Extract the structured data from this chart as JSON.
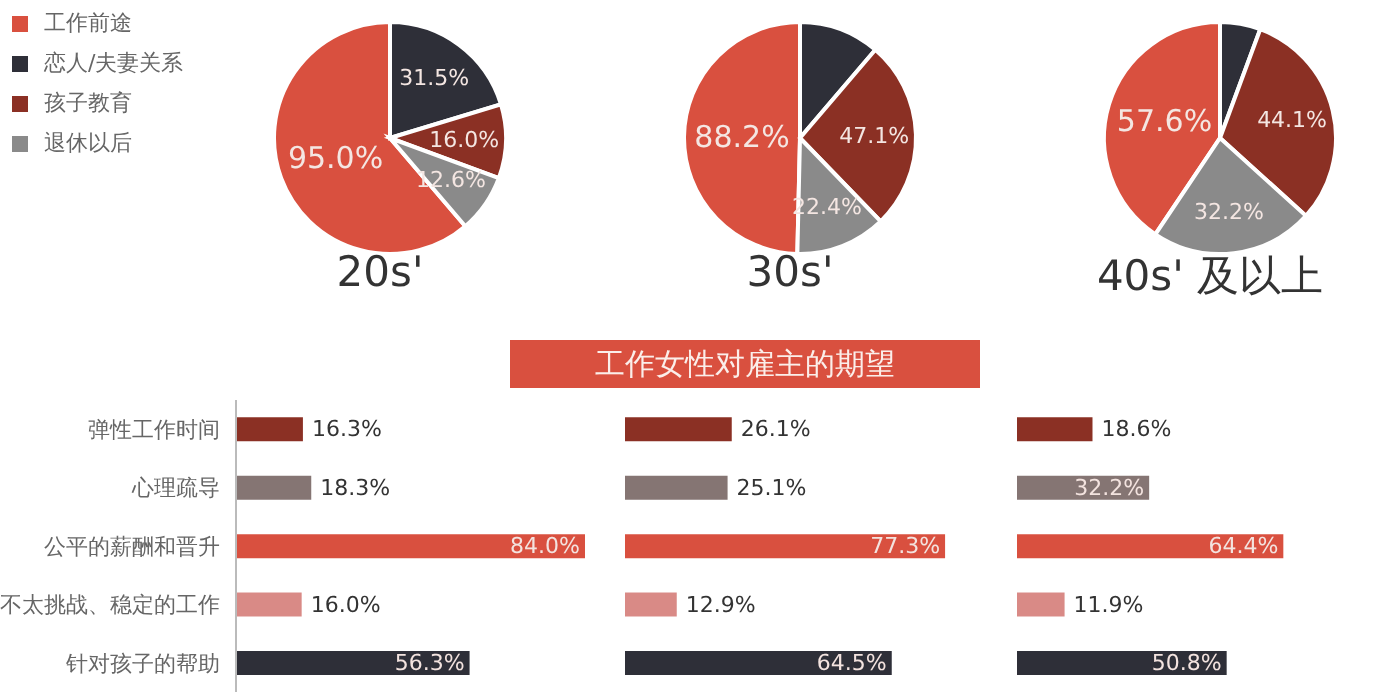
{
  "chart_data": [
    {
      "type": "pie",
      "title": "20s'",
      "categories": [
        "工作前途",
        "恋人/夫妻关系",
        "孩子教育",
        "退休以后"
      ],
      "values": [
        95.0,
        31.5,
        16.0,
        12.6
      ],
      "value_labels": [
        "95.0%",
        "31.5%",
        "16.0%",
        "12.6%"
      ],
      "colors": [
        "#d9503f",
        "#2e2f38",
        "#8b3024",
        "#8a8a8a"
      ],
      "legend": "left"
    },
    {
      "type": "pie",
      "title": "30s'",
      "categories": [
        null,
        null,
        null,
        null
      ],
      "values": [
        88.2,
        20,
        47.1,
        22.4
      ],
      "value_labels": [
        "88.2%",
        null,
        "47.1%",
        "22.4%"
      ],
      "colors": [
        "#d9503f",
        "#2e2f38",
        "#8b3024",
        "#8a8a8a"
      ]
    },
    {
      "type": "pie",
      "title": "40s' 及以上",
      "categories": [
        null,
        null,
        null,
        null
      ],
      "values": [
        57.6,
        8,
        44.1,
        32.2
      ],
      "value_labels": [
        "57.6%",
        null,
        "44.1%",
        "32.2%"
      ],
      "colors": [
        "#d9503f",
        "#2e2f38",
        "#8b3024",
        "#8a8a8a"
      ]
    },
    {
      "type": "bar",
      "orientation": "horizontal",
      "categories": [
        "弹性工作时间",
        "心理疏导",
        "公平的薪酬和晋升",
        "不太挑战、稳定的工作",
        "针对孩子的帮助"
      ],
      "values": [
        16.3,
        18.3,
        84.0,
        16.0,
        56.3
      ],
      "value_labels": [
        "16.3%",
        "18.3%",
        "84.0%",
        "16.0%",
        "56.3%"
      ],
      "colors": [
        "#8b3024",
        "#857573",
        "#d9503f",
        "#d98a86",
        "#2e2f38"
      ],
      "tick_labels": "y"
    },
    {
      "type": "bar",
      "orientation": "horizontal",
      "title": "工作女性对雇主的期望",
      "categories": [
        null,
        null,
        null,
        null,
        null
      ],
      "values": [
        26.1,
        25.1,
        77.3,
        12.9,
        64.5
      ],
      "value_labels": [
        "26.1%",
        "25.1%",
        "77.3%",
        "12.9%",
        "64.5%"
      ],
      "colors": [
        "#8b3024",
        "#857573",
        "#d9503f",
        "#d98a86",
        "#2e2f38"
      ],
      "tick_labels": false
    },
    {
      "type": "bar",
      "orientation": "horizontal",
      "categories": [
        null,
        null,
        null,
        null,
        null
      ],
      "values": [
        18.6,
        32.2,
        64.4,
        11.9,
        50.8
      ],
      "value_labels": [
        "18.6%",
        "32.2%",
        "64.4%",
        "11.9%",
        "50.8%"
      ],
      "colors": [
        "#8b3024",
        "#857573",
        "#d9503f",
        "#d98a86",
        "#2e2f38"
      ],
      "tick_labels": false
    }
  ]
}
